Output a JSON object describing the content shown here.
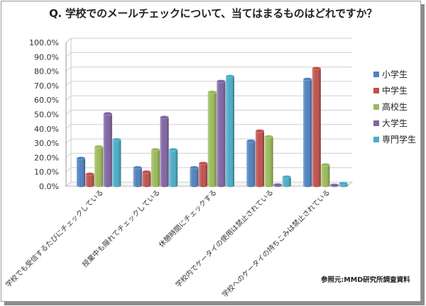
{
  "title": "Q. 学校でのメールチェックについて、当てはまるものはどれですか？",
  "source": "参照元:MMD研究所調査資料",
  "legend": [
    {
      "label": "小学生",
      "color": "#4F81BD"
    },
    {
      "label": "中学生",
      "color": "#C0504D"
    },
    {
      "label": "高校生",
      "color": "#9BBB59"
    },
    {
      "label": "大学生",
      "color": "#8064A2"
    },
    {
      "label": "専門学生",
      "color": "#4BACC6"
    }
  ],
  "chart_data": {
    "type": "bar",
    "style": "3d-cylinder",
    "title": "Q. 学校でのメールチェックについて、当てはまるものはどれですか？",
    "xlabel": "",
    "ylabel": "",
    "ylim": [
      0,
      100
    ],
    "yticks": [
      "0.0%",
      "10.0%",
      "20.0%",
      "30.0%",
      "40.0%",
      "50.0%",
      "60.0%",
      "70.0%",
      "80.0%",
      "90.0%",
      "100.0%"
    ],
    "grid": true,
    "legend_position": "right",
    "categories": [
      "学校でも受信するたびにチェックしている",
      "授業中も隠れてチェックしている",
      "休憩時間にチェックする",
      "学校内でケータイの使用は禁止されている",
      "学校へのケータイの持ちこみは禁止されている"
    ],
    "series": [
      {
        "name": "小学生",
        "color": "#4F81BD",
        "values": [
          19.0,
          12.5,
          12.5,
          31.0,
          74.0
        ]
      },
      {
        "name": "中学生",
        "color": "#C0504D",
        "values": [
          8.0,
          9.5,
          15.5,
          38.0,
          81.5
        ]
      },
      {
        "name": "高校生",
        "color": "#9BBB59",
        "values": [
          27.0,
          25.0,
          65.0,
          34.0,
          14.5
        ]
      },
      {
        "name": "大学生",
        "color": "#8064A2",
        "values": [
          50.0,
          47.5,
          72.5,
          0.5,
          0.3
        ]
      },
      {
        "name": "専門学生",
        "color": "#4BACC6",
        "values": [
          32.0,
          25.0,
          76.0,
          6.0,
          1.5
        ]
      }
    ],
    "annotations": [
      "参照元:MMD研究所調査資料"
    ]
  }
}
